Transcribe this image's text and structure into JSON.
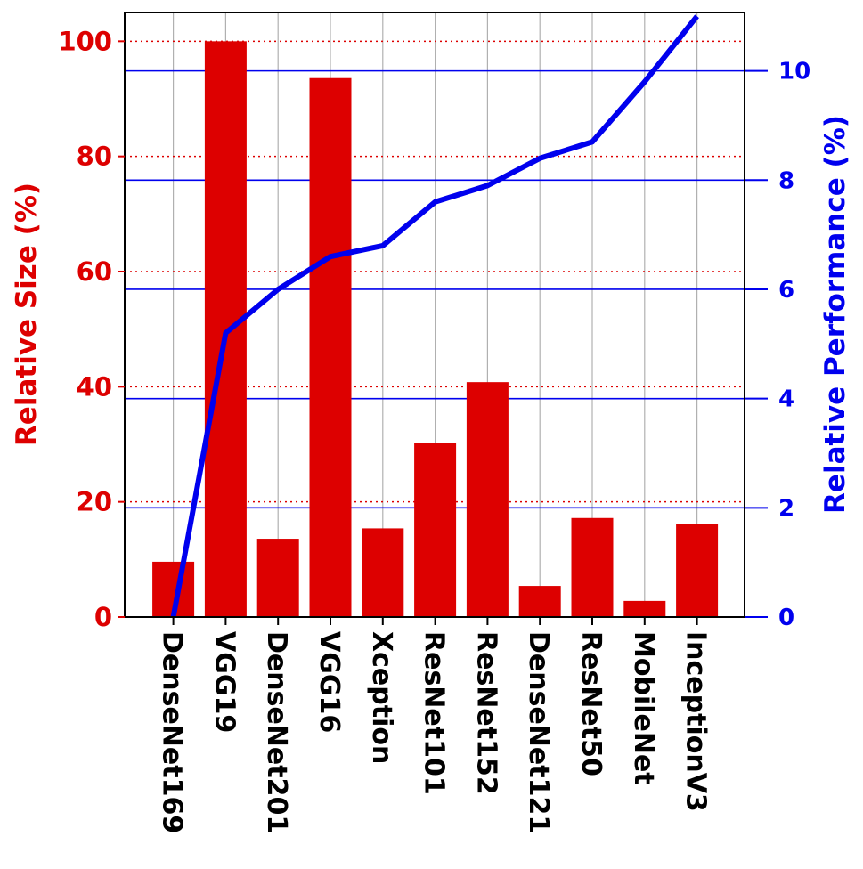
{
  "chart_data": {
    "type": "bar",
    "categories": [
      "DenseNet169",
      "VGG19",
      "DenseNet201",
      "VGG16",
      "Xception",
      "ResNet101",
      "ResNet152",
      "DenseNet121",
      "ResNet50",
      "MobileNet",
      "InceptionV3"
    ],
    "series": [
      {
        "type": "bar",
        "axis": "left",
        "color": "#dd0000",
        "values": [
          9.6,
          100,
          13.6,
          93.6,
          15.4,
          30.2,
          40.8,
          5.4,
          17.2,
          2.8,
          16.1
        ]
      },
      {
        "type": "line",
        "axis": "right",
        "color": "#0000ee",
        "values": [
          0,
          5.2,
          6.0,
          6.6,
          6.8,
          7.6,
          7.9,
          8.4,
          8.7,
          9.8,
          11.0
        ]
      }
    ],
    "y_left": {
      "label": "Relative Size (%)",
      "range": [
        0,
        105
      ],
      "ticks": [
        0,
        20,
        40,
        60,
        80,
        100
      ],
      "color": "#dd0000",
      "grid": "dotted"
    },
    "y_right": {
      "label": "Relative Performance (%)",
      "range": [
        0,
        11.07
      ],
      "ticks": [
        0,
        2,
        4,
        6,
        8,
        10
      ],
      "color": "#0000ee",
      "grid": "solid"
    },
    "x_grid": true
  }
}
